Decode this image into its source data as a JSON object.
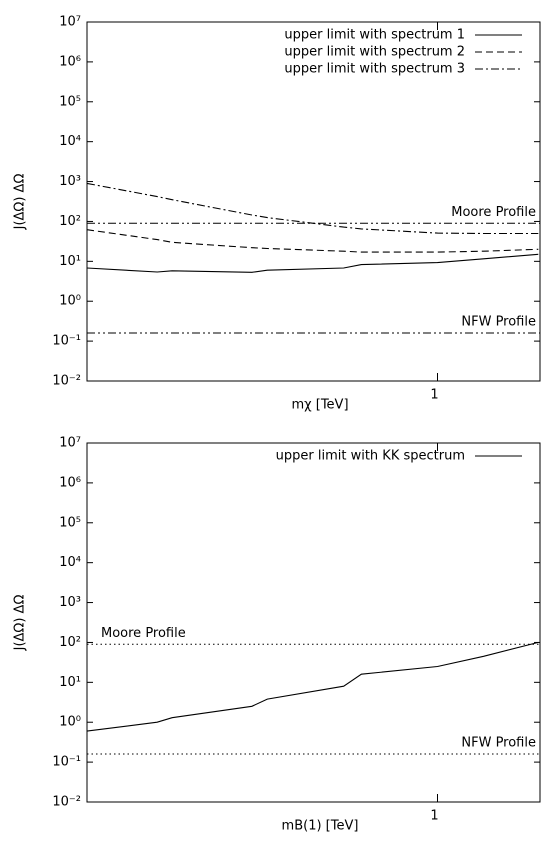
{
  "chart_data": [
    {
      "type": "line",
      "xlabel": "mχ [TeV]",
      "ylabel": "J(ΔΩ) ΔΩ",
      "xlog": true,
      "ylog": true,
      "xlim": [
        0.25,
        1.5
      ],
      "xticks": [
        1
      ],
      "ylim": [
        0.01,
        10000000
      ],
      "yticks": [
        {
          "value": 0.01,
          "label": "10⁻²"
        },
        {
          "value": 0.1,
          "label": "10⁻¹"
        },
        {
          "value": 1,
          "label": "10⁰"
        },
        {
          "value": 10,
          "label": "10¹"
        },
        {
          "value": 100,
          "label": "10²"
        },
        {
          "value": 1000,
          "label": "10³"
        },
        {
          "value": 10000,
          "label": "10⁴"
        },
        {
          "value": 100000,
          "label": "10⁵"
        },
        {
          "value": 1000000,
          "label": "10⁶"
        },
        {
          "value": 10000000,
          "label": "10⁷"
        }
      ],
      "x": [
        0.25,
        0.33,
        0.35,
        0.48,
        0.51,
        0.69,
        0.74,
        1.0,
        1.2,
        1.49
      ],
      "series": [
        {
          "name": "upper limit with spectrum 1",
          "color": "#000000",
          "style": "solid",
          "values": [
            6.8,
            5.4,
            5.8,
            5.3,
            6.0,
            6.8,
            8.3,
            9.3,
            11.6,
            15
          ]
        },
        {
          "name": "upper limit with spectrum 2",
          "color": "#000000",
          "style": "dashed",
          "values": [
            62,
            35,
            30,
            22,
            21,
            18,
            17,
            17,
            18,
            20
          ]
        },
        {
          "name": "upper limit with spectrum 3",
          "color": "#000000",
          "style": "dashdot",
          "values": [
            900,
            420,
            350,
            145,
            125,
            72,
            65,
            51,
            50,
            50
          ]
        }
      ],
      "hlines": [
        {
          "label": "Moore Profile",
          "value": 90,
          "style": "dashdotdot",
          "color": "#000000",
          "label_position": "right"
        },
        {
          "label": "NFW Profile",
          "value": 0.16,
          "style": "dashdotdot",
          "color": "#000000",
          "label_position": "right"
        }
      ]
    },
    {
      "type": "line",
      "xlabel": "mB(1) [TeV]",
      "ylabel": "J(ΔΩ) ΔΩ",
      "xlog": true,
      "ylog": true,
      "xlim": [
        0.25,
        1.5
      ],
      "xticks": [
        1
      ],
      "ylim": [
        0.01,
        10000000
      ],
      "yticks": [
        {
          "value": 0.01,
          "label": "10⁻²"
        },
        {
          "value": 0.1,
          "label": "10⁻¹"
        },
        {
          "value": 1,
          "label": "10⁰"
        },
        {
          "value": 10,
          "label": "10¹"
        },
        {
          "value": 100,
          "label": "10²"
        },
        {
          "value": 1000,
          "label": "10³"
        },
        {
          "value": 10000,
          "label": "10⁴"
        },
        {
          "value": 100000,
          "label": "10⁵"
        },
        {
          "value": 1000000,
          "label": "10⁶"
        },
        {
          "value": 10000000,
          "label": "10⁷"
        }
      ],
      "x": [
        0.25,
        0.33,
        0.35,
        0.48,
        0.51,
        0.69,
        0.74,
        1.0,
        1.2,
        1.49
      ],
      "series": [
        {
          "name": "upper limit with KK spectrum",
          "color": "#000000",
          "style": "solid",
          "values": [
            0.6,
            1.0,
            1.3,
            2.5,
            3.8,
            8,
            16,
            25,
            45,
            100
          ]
        }
      ],
      "hlines": [
        {
          "label": "Moore Profile",
          "value": 90,
          "style": "dotted",
          "color": "#000000",
          "label_position": "left"
        },
        {
          "label": "NFW Profile",
          "value": 0.16,
          "style": "dotted",
          "color": "#000000",
          "label_position": "right"
        }
      ]
    }
  ]
}
